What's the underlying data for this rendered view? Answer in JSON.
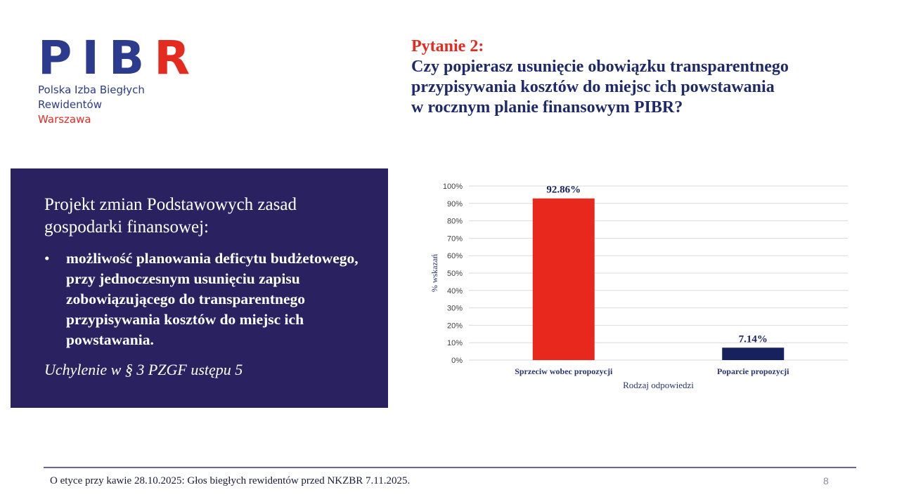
{
  "logo": {
    "mark_main": "PIB",
    "mark_accent": "R",
    "line1": "Polska Izba Biegłych",
    "line2": "Rewidentów",
    "city": "Warszawa"
  },
  "title": {
    "question_number": "Pytanie 2:",
    "question_text": "Czy popierasz usunięcie obowiązku transparentnego\nprzypisywania kosztów do miejsc ich powstawania\nw rocznym planie finansowym PIBR?"
  },
  "panel": {
    "heading": "Projekt zmian Podstawowych zasad gospodarki finansowej:",
    "bullet_marker": "•",
    "bullet": "możliwość planowania deficytu budżetowego, przy jednoczesnym usunięciu zapisu zobowiązującego do transparentnego przypisywania kosztów do miejsc ich powstawania.",
    "note": "Uchylenie w § 3 PZGF ustępu 5"
  },
  "chart_data": {
    "type": "bar",
    "categories": [
      "Sprzeciw wobec propozycji",
      "Poparcie propozycji"
    ],
    "values": [
      92.86,
      7.14
    ],
    "data_labels": [
      "92.86%",
      "7.14%"
    ],
    "colors": [
      "#e8271d",
      "#16215e"
    ],
    "ylabel": "% wskazań",
    "xlabel": "Rodzaj odpowiedzi",
    "ylim": [
      0,
      100
    ],
    "yticks": [
      0,
      10,
      20,
      30,
      40,
      50,
      60,
      70,
      80,
      90,
      100
    ],
    "ytick_labels": [
      "0%",
      "10%",
      "20%",
      "30%",
      "40%",
      "50%",
      "60%",
      "70%",
      "80%",
      "90%",
      "100%"
    ],
    "grid": true
  },
  "footer": {
    "text": "O etyce przy kawie 28.10.2025: Głos biegłych rewidentów przed NKZBR 7.11.2025.",
    "page_number": "8"
  }
}
